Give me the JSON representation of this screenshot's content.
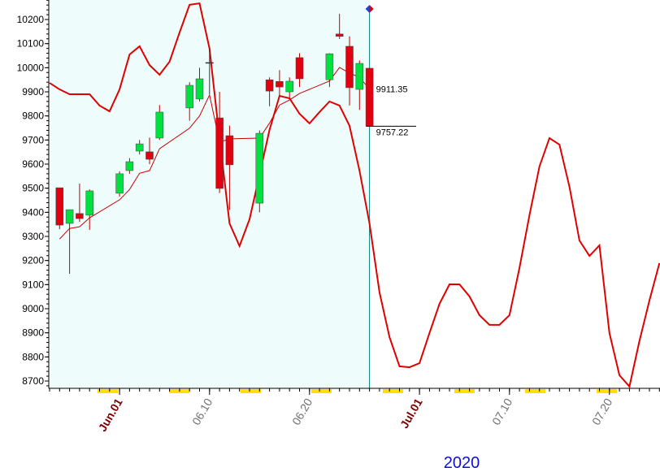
{
  "chart_data": {
    "type": "candlestick",
    "categories": [
      null,
      null,
      null,
      null,
      null,
      null,
      null,
      "Jun.01",
      null,
      null,
      null,
      null,
      null,
      null,
      null,
      null,
      "06.10",
      null,
      null,
      null,
      null,
      null,
      null,
      null,
      null,
      null,
      "06.20",
      null,
      null,
      null,
      null,
      null,
      null,
      null,
      null,
      null,
      null,
      "Jul.01",
      null,
      null,
      null,
      null,
      null,
      null,
      null,
      null,
      "07.10",
      null,
      null,
      null,
      null,
      null,
      null,
      null,
      null,
      null,
      "07.20",
      null,
      null,
      null,
      null,
      null
    ],
    "open": [
      null,
      9502,
      9354,
      9395,
      9388,
      null,
      null,
      9479,
      9573,
      9654,
      9651,
      9708,
      null,
      null,
      9833,
      9870,
      10020,
      9792,
      9718,
      null,
      null,
      9438,
      9950,
      9943,
      9900,
      10042,
      null,
      null,
      9950,
      10140,
      10089,
      9910,
      9998,
      null,
      null,
      null,
      null,
      null,
      null,
      null,
      null,
      null,
      null,
      null,
      null,
      null,
      null,
      null,
      null,
      null,
      null,
      null,
      null,
      null,
      null,
      null,
      null,
      null,
      null,
      null,
      null,
      null
    ],
    "high": [
      null,
      9502,
      9411,
      9519,
      9495,
      null,
      null,
      9570,
      9625,
      9700,
      9710,
      9845,
      null,
      null,
      9940,
      10000,
      10080,
      9900,
      9760,
      null,
      null,
      9740,
      9960,
      9990,
      9960,
      10060,
      null,
      null,
      10060,
      10224,
      10130,
      10030,
      10000,
      null,
      null,
      null,
      null,
      null,
      null,
      null,
      null,
      null,
      null,
      null,
      null,
      null,
      null,
      null,
      null,
      null,
      null,
      null,
      null,
      null,
      null,
      null,
      null,
      null,
      null,
      null,
      null,
      null
    ],
    "low": [
      null,
      9330,
      9145,
      9360,
      9327,
      null,
      null,
      9465,
      9560,
      9640,
      9600,
      9700,
      null,
      null,
      9780,
      9860,
      9890,
      9480,
      9410,
      null,
      null,
      9400,
      9840,
      9880,
      9870,
      9920,
      null,
      null,
      9920,
      10119,
      9843,
      9825,
      9757,
      null,
      null,
      null,
      null,
      null,
      null,
      null,
      null,
      null,
      null,
      null,
      null,
      null,
      null,
      null,
      null,
      null,
      null,
      null,
      null,
      null,
      null,
      null,
      null,
      null,
      null,
      null,
      null,
      null
    ],
    "close": [
      null,
      9347,
      9411,
      9374,
      9489,
      null,
      null,
      9560,
      9610,
      9684,
      9620,
      9816,
      null,
      null,
      9927,
      9954,
      10020,
      9499,
      9597,
      null,
      null,
      9728,
      9903,
      9920,
      9944,
      9954,
      null,
      null,
      10058,
      10130,
      9917,
      10018,
      9757.22,
      null,
      null,
      null,
      null,
      null,
      null,
      null,
      null,
      null,
      null,
      null,
      null,
      null,
      null,
      null,
      null,
      null,
      null,
      null,
      null,
      null,
      null,
      null,
      null,
      null,
      null,
      null,
      null,
      null
    ],
    "up_color": "#00e040",
    "down_color": "#e00010",
    "flat_color": "#333333",
    "lines": [
      {
        "color": "#cc0000",
        "width": 1,
        "values": [
          null,
          9289,
          9333,
          9340,
          9377,
          null,
          null,
          9452,
          9495,
          9562,
          9573,
          9664,
          null,
          null,
          9749,
          9800,
          9887,
          9691,
          9705,
          null,
          null,
          9708,
          9770,
          9845,
          9866,
          9893,
          null,
          null,
          9945,
          10001,
          9978,
          9960,
          9911.35,
          null,
          null,
          null,
          null,
          null,
          null,
          null,
          null,
          null,
          null,
          null,
          null,
          null,
          null,
          null,
          null,
          null,
          null,
          null,
          null,
          null,
          null,
          null,
          null,
          null,
          null,
          null,
          null,
          null
        ]
      },
      {
        "color": "#e00000",
        "width": 2,
        "values": [
          9937,
          9910,
          9890,
          9890,
          9890,
          9843,
          9819,
          9910,
          10055,
          10089,
          10011,
          9971,
          10025,
          10146,
          10261,
          10267,
          10079,
          9708,
          9354,
          9260,
          9371,
          9556,
          9742,
          9883,
          9873,
          9809,
          9769,
          9816,
          9860,
          9843,
          9759,
          9573,
          9354,
          9068,
          8882,
          8761,
          8757,
          8774,
          8899,
          9020,
          9101,
          9101,
          9051,
          8973,
          8933,
          8933,
          8973,
          9169,
          9388,
          9590,
          9708,
          9681,
          9506,
          9283,
          9219,
          9263,
          8899,
          8724,
          8677,
          8866,
          9034,
          9189
        ]
      }
    ],
    "price_labels": [
      9911.35,
      9757.22
    ],
    "year_label": "2020",
    "ylim": [
      8673,
      10281
    ],
    "yticks": [
      8700,
      8800,
      8900,
      9000,
      9100,
      9200,
      9300,
      9400,
      9500,
      9600,
      9700,
      9800,
      9900,
      10000,
      10100,
      10200
    ]
  }
}
